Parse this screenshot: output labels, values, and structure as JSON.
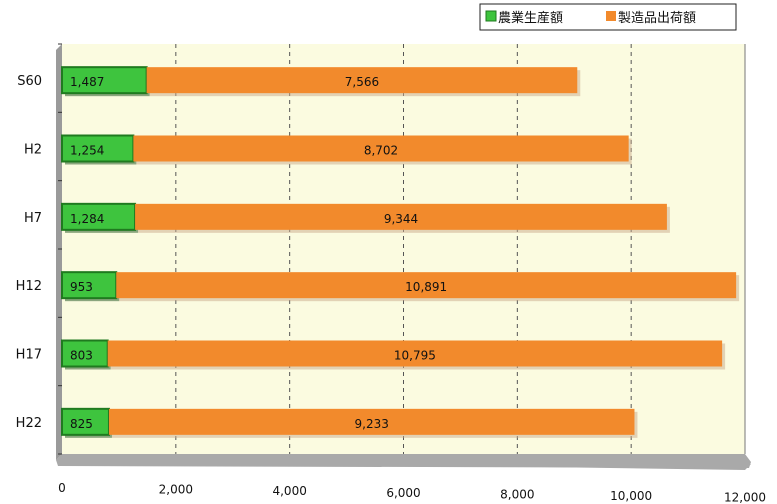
{
  "chart_data": {
    "type": "bar",
    "orientation": "horizontal",
    "stacked": true,
    "categories": [
      "S60",
      "H2",
      "H7",
      "H12",
      "H17",
      "H22"
    ],
    "series": [
      {
        "name": "農業生産額",
        "values": [
          1487,
          1254,
          1284,
          953,
          803,
          825
        ],
        "value_labels": [
          "1,487",
          "1,254",
          "1,284",
          "953",
          "803",
          "825"
        ]
      },
      {
        "name": "製造品出荷額",
        "values": [
          7566,
          8702,
          9344,
          10891,
          10795,
          9233
        ],
        "value_labels": [
          "7,566",
          "8,702",
          "9,344",
          "10,891",
          "10,795",
          "9,233"
        ]
      }
    ],
    "xlim": [
      0,
      12000
    ],
    "x_ticks": [
      0,
      2000,
      4000,
      6000,
      8000,
      10000,
      12000
    ],
    "x_tick_labels": [
      "0",
      "2,000",
      "4,000",
      "6,000",
      "8,000",
      "10,000",
      "12,000"
    ],
    "grid": "vertical-dashed",
    "legend_position": "top-right"
  },
  "colors": {
    "agri": "#3ec43e",
    "agri_edge": "#1f7a1f",
    "mfg": "#f28a2c",
    "plot_bg": "#fbfbe0",
    "floor": "#a9a9a9",
    "wall": "#9a9a9a"
  }
}
